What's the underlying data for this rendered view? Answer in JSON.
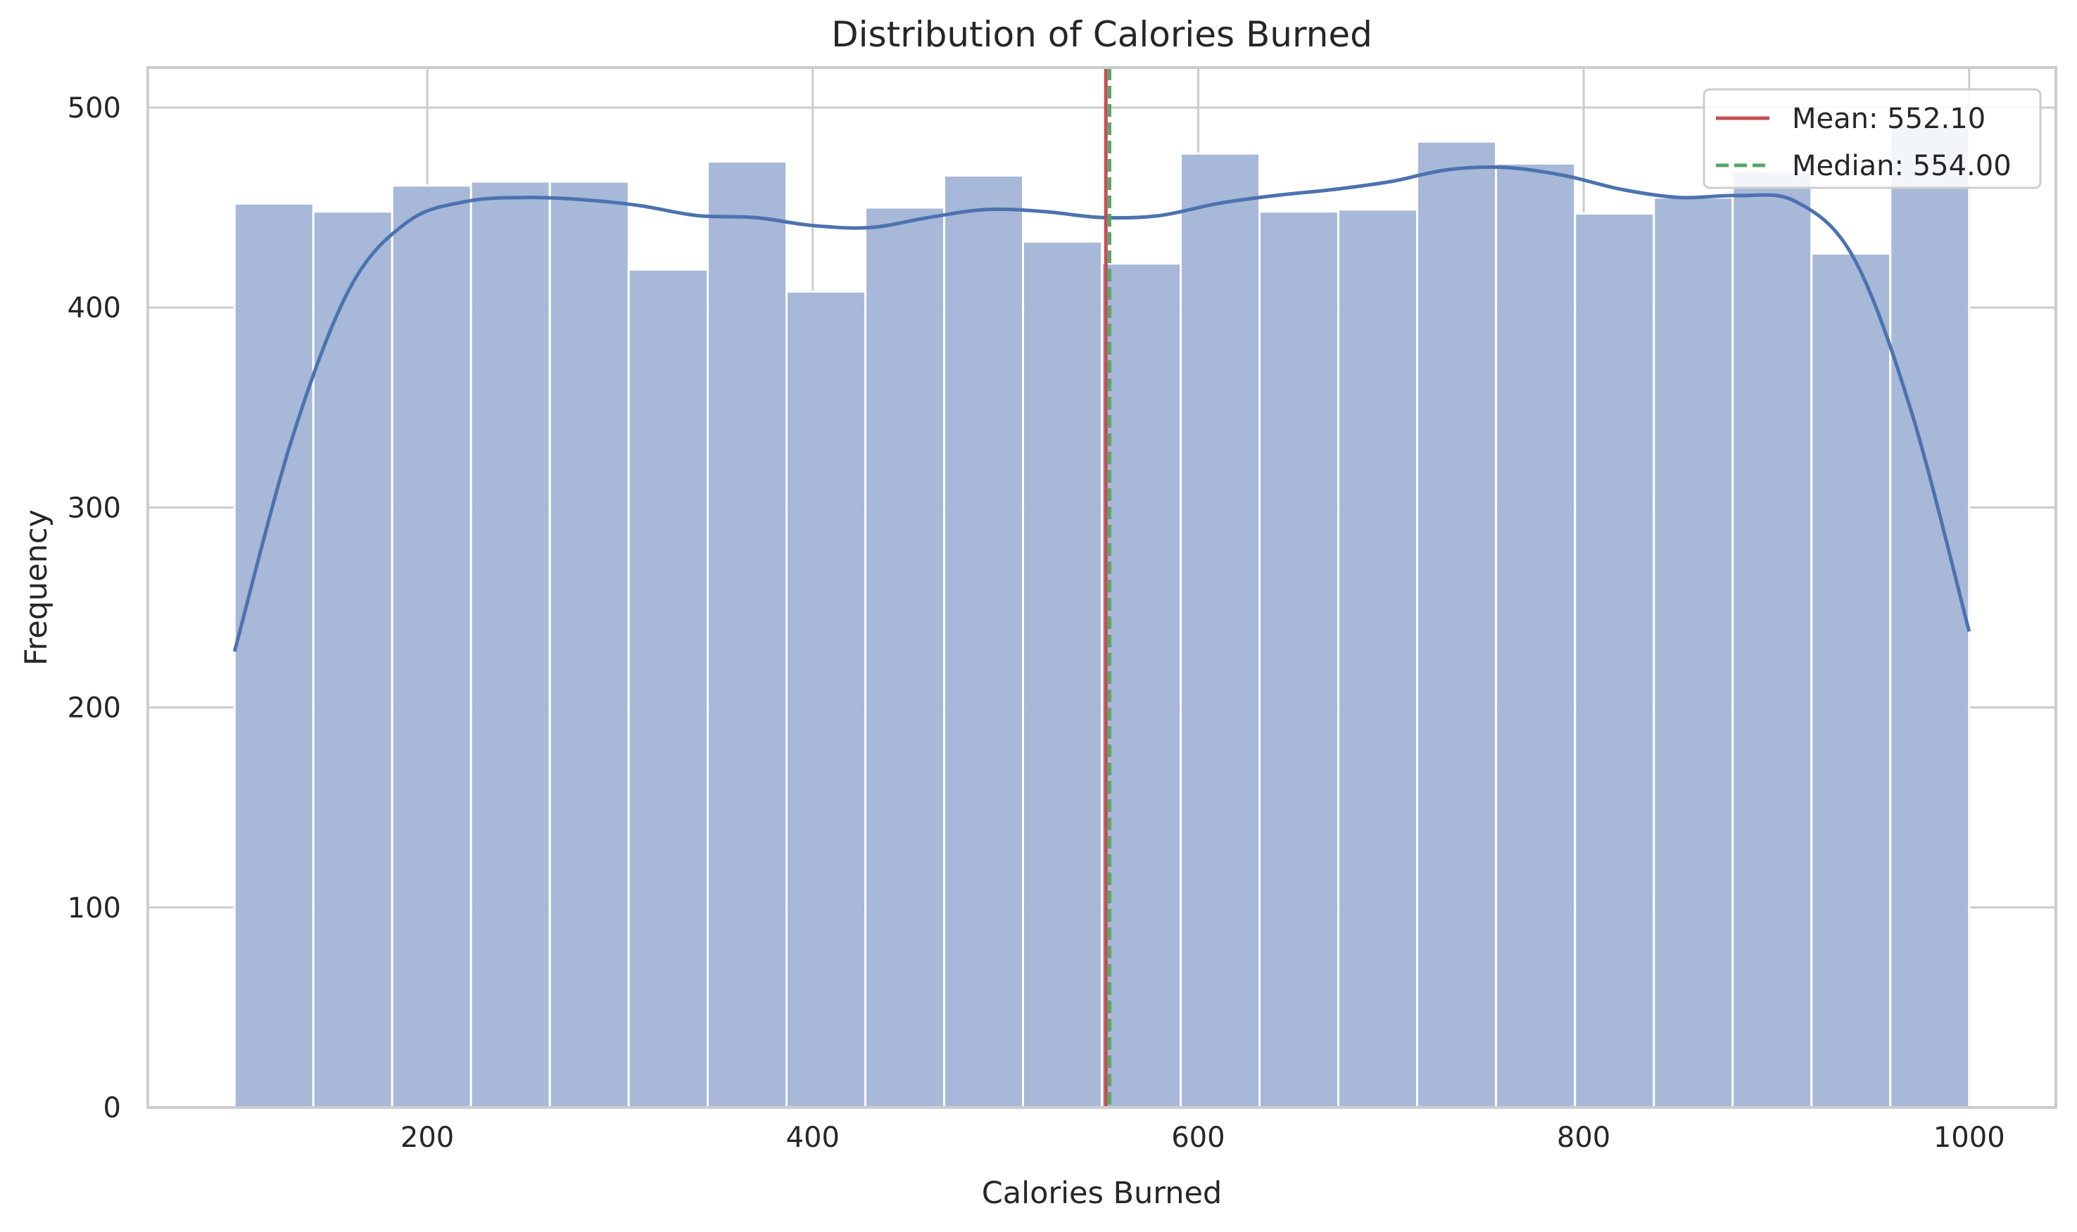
{
  "chart_data": {
    "type": "histogram",
    "title": "Distribution of Calories Burned",
    "xlabel": "Calories Burned",
    "ylabel": "Frequency",
    "xlim": [
      55,
      1045
    ],
    "ylim": [
      0,
      520
    ],
    "xticks": [
      200,
      400,
      600,
      800,
      1000
    ],
    "yticks": [
      0,
      100,
      200,
      300,
      400,
      500
    ],
    "grid": true,
    "legend_position": "top-right",
    "bins": {
      "start": 100,
      "end": 1000,
      "edges": [
        100,
        140.9,
        181.8,
        222.7,
        263.6,
        304.5,
        345.5,
        386.4,
        427.3,
        468.2,
        509.1,
        550,
        590.9,
        631.8,
        672.7,
        713.6,
        754.5,
        795.5,
        836.4,
        877.3,
        918.2,
        959.1,
        1000
      ],
      "counts": [
        452,
        448,
        461,
        463,
        463,
        419,
        473,
        408,
        450,
        466,
        433,
        422,
        477,
        448,
        449,
        483,
        472,
        447,
        455,
        468,
        427,
        492
      ]
    },
    "kde": {
      "x": [
        100,
        130,
        160,
        190,
        220,
        250,
        280,
        310,
        340,
        370,
        400,
        430,
        460,
        490,
        520,
        550,
        580,
        610,
        640,
        670,
        700,
        730,
        760,
        790,
        820,
        850,
        880,
        910,
        940,
        970,
        1000
      ],
      "y": [
        228,
        335,
        410,
        443,
        453,
        455,
        454,
        451,
        446,
        445,
        441,
        440,
        445,
        449,
        448,
        445,
        446,
        452,
        456,
        459,
        463,
        469,
        470,
        466,
        459,
        455,
        456,
        453,
        425,
        348,
        238
      ]
    },
    "reference_lines": [
      {
        "label": "Mean: 552.10",
        "value": 552.1,
        "color": "#c44e52",
        "style": "solid"
      },
      {
        "label": "Median: 554.00",
        "value": 554.0,
        "color": "#55a868",
        "style": "dashed"
      }
    ],
    "colors": {
      "bar_fill": "#a4b6d7",
      "bar_edge": "#ffffff",
      "kde_line": "#4c72b0",
      "grid": "#cccccc",
      "frame": "#cccccc",
      "text": "#262626"
    }
  }
}
